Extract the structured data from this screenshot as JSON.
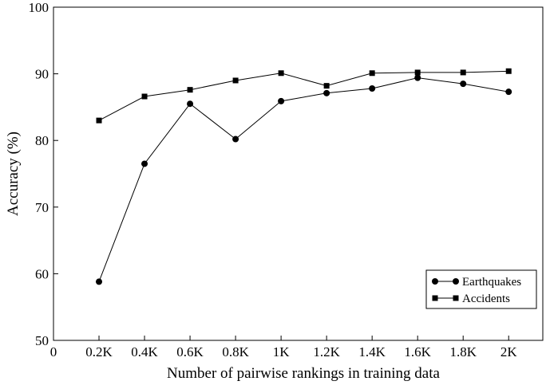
{
  "chart_data": {
    "type": "line",
    "xlabel": "Number of pairwise rankings in training data",
    "ylabel": "Accuracy (%)",
    "xlim": [
      0,
      2.15
    ],
    "ylim": [
      50,
      100
    ],
    "x_ticks": [
      0,
      0.2,
      0.4,
      0.6,
      0.8,
      1.0,
      1.2,
      1.4,
      1.6,
      1.8,
      2.0
    ],
    "x_tick_labels": [
      "0",
      "0.2K",
      "0.4K",
      "0.6K",
      "0.8K",
      "1K",
      "1.2K",
      "1.4K",
      "1.6K",
      "1.8K",
      "2K"
    ],
    "y_ticks": [
      50,
      60,
      70,
      80,
      90,
      100
    ],
    "y_tick_labels": [
      "50",
      "60",
      "70",
      "80",
      "90",
      "100"
    ],
    "grid": false,
    "legend_position": "bottom-right",
    "x": [
      0.2,
      0.4,
      0.6,
      0.8,
      1.0,
      1.2,
      1.4,
      1.6,
      1.8,
      2.0
    ],
    "series": [
      {
        "name": "Earthquakes",
        "marker": "circle",
        "values": [
          58.8,
          76.5,
          85.5,
          80.2,
          85.9,
          87.1,
          87.8,
          89.4,
          88.5,
          87.3
        ]
      },
      {
        "name": "Accidents",
        "marker": "square",
        "values": [
          83.0,
          86.6,
          87.6,
          89.0,
          90.1,
          88.2,
          90.1,
          90.2,
          90.2,
          90.4
        ]
      }
    ]
  }
}
